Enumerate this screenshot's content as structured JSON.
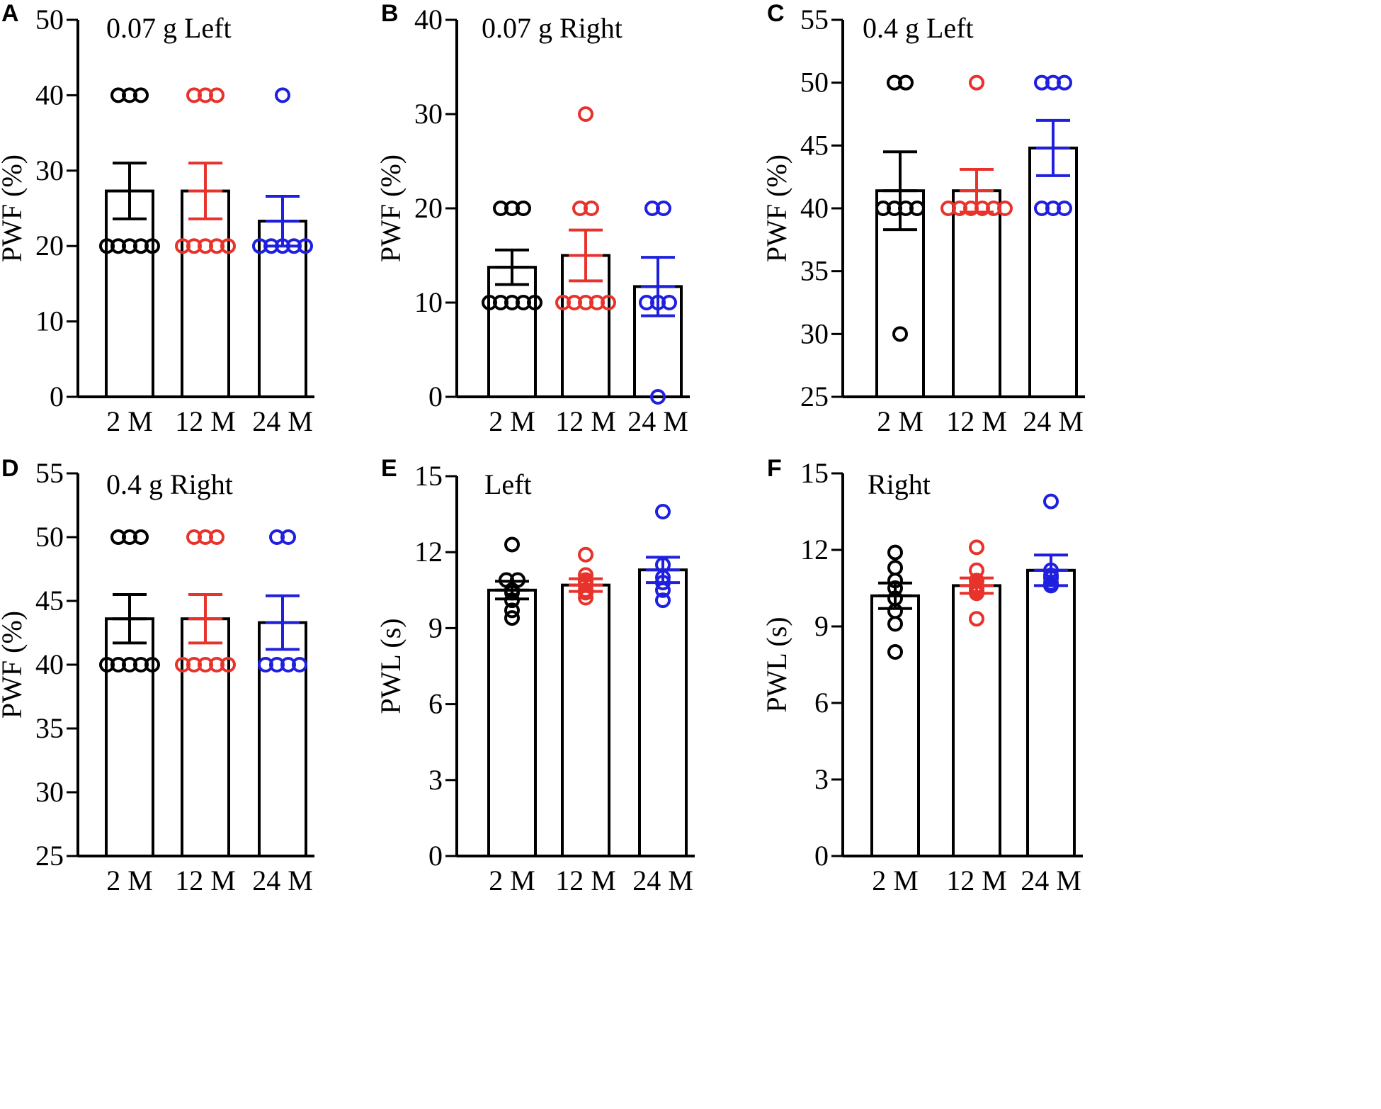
{
  "groups": [
    "2 M",
    "12 M",
    "24 M"
  ],
  "colors": {
    "2 M": "#000000",
    "12 M": "#e8322c",
    "24 M": "#1f1fe0"
  },
  "chart_data": [
    {
      "panel": "A",
      "type": "bar",
      "title": "0.07 g Left",
      "ylabel": "PWF (%)",
      "ylim": [
        0,
        50
      ],
      "yticks": [
        0,
        10,
        20,
        30,
        40,
        50
      ],
      "categories": [
        "2 M",
        "12 M",
        "24 M"
      ],
      "series": [
        {
          "name": "2 M",
          "mean": 27.3,
          "sem": 3.7,
          "points": [
            20,
            20,
            20,
            20,
            20,
            40,
            40,
            40
          ]
        },
        {
          "name": "12 M",
          "mean": 27.3,
          "sem": 3.7,
          "points": [
            20,
            20,
            20,
            20,
            20,
            40,
            40,
            40
          ]
        },
        {
          "name": "24 M",
          "mean": 23.3,
          "sem": 3.3,
          "points": [
            20,
            20,
            20,
            20,
            20,
            40
          ]
        }
      ]
    },
    {
      "panel": "B",
      "type": "bar",
      "title": "0.07 g Right",
      "ylabel": "PWF (%)",
      "ylim": [
        0,
        40
      ],
      "yticks": [
        0,
        10,
        20,
        30,
        40
      ],
      "categories": [
        "2 M",
        "12 M",
        "24 M"
      ],
      "series": [
        {
          "name": "2 M",
          "mean": 13.75,
          "sem": 1.83,
          "points": [
            10,
            10,
            10,
            10,
            10,
            20,
            20,
            20
          ]
        },
        {
          "name": "12 M",
          "mean": 15.0,
          "sem": 2.7,
          "points": [
            10,
            10,
            10,
            10,
            10,
            20,
            20,
            30
          ]
        },
        {
          "name": "24 M",
          "mean": 11.7,
          "sem": 3.1,
          "points": [
            0,
            10,
            10,
            10,
            20,
            20
          ]
        }
      ]
    },
    {
      "panel": "C",
      "type": "bar",
      "title": "0.4 g Left",
      "ylabel": "PWF (%)",
      "ylim": [
        25,
        55
      ],
      "yticks": [
        25,
        30,
        35,
        40,
        45,
        50,
        55
      ],
      "categories": [
        "2 M",
        "12 M",
        "24 M"
      ],
      "series": [
        {
          "name": "2 M",
          "mean": 41.4,
          "sem": 3.1,
          "points": [
            30,
            40,
            40,
            40,
            40,
            50,
            50
          ]
        },
        {
          "name": "12 M",
          "mean": 41.4,
          "sem": 1.7,
          "points": [
            40,
            40,
            40,
            40,
            40,
            40,
            50
          ]
        },
        {
          "name": "24 M",
          "mean": 44.8,
          "sem": 2.2,
          "points": [
            40,
            40,
            40,
            50,
            50,
            50
          ]
        }
      ]
    },
    {
      "panel": "D",
      "type": "bar",
      "title": "0.4 g Right",
      "ylabel": "PWF (%)",
      "ylim": [
        25,
        55
      ],
      "yticks": [
        25,
        30,
        35,
        40,
        45,
        50,
        55
      ],
      "categories": [
        "2 M",
        "12 M",
        "24 M"
      ],
      "series": [
        {
          "name": "2 M",
          "mean": 43.6,
          "sem": 1.9,
          "points": [
            40,
            40,
            40,
            40,
            40,
            50,
            50,
            50
          ]
        },
        {
          "name": "12 M",
          "mean": 43.6,
          "sem": 1.9,
          "points": [
            40,
            40,
            40,
            40,
            40,
            50,
            50,
            50
          ]
        },
        {
          "name": "24 M",
          "mean": 43.3,
          "sem": 2.1,
          "points": [
            40,
            40,
            40,
            40,
            50,
            50
          ]
        }
      ]
    },
    {
      "panel": "E",
      "type": "bar",
      "title": "Left",
      "ylabel": "PWL (s)",
      "ylim": [
        0,
        15
      ],
      "yticks": [
        0,
        3,
        6,
        9,
        12,
        15
      ],
      "categories": [
        "2 M",
        "12 M",
        "24 M"
      ],
      "series": [
        {
          "name": "2 M",
          "mean": 10.5,
          "sem": 0.35,
          "points": [
            12.3,
            10.9,
            10.9,
            10.5,
            10.4,
            10.1,
            9.7,
            9.4
          ]
        },
        {
          "name": "12 M",
          "mean": 10.7,
          "sem": 0.25,
          "points": [
            11.9,
            11.1,
            10.9,
            10.8,
            10.7,
            10.5,
            10.4,
            10.2
          ]
        },
        {
          "name": "24 M",
          "mean": 11.3,
          "sem": 0.5,
          "points": [
            13.6,
            11.5,
            11.0,
            10.8,
            10.5,
            10.1
          ]
        }
      ]
    },
    {
      "panel": "F",
      "type": "bar",
      "title": "Right",
      "ylabel": "PWL (s)",
      "ylim": [
        0,
        15
      ],
      "yticks": [
        0,
        3,
        6,
        9,
        12,
        15
      ],
      "categories": [
        "2 M",
        "12 M",
        "24 M"
      ],
      "series": [
        {
          "name": "2 M",
          "mean": 10.2,
          "sem": 0.5,
          "points": [
            11.9,
            11.3,
            10.8,
            10.5,
            10.1,
            9.6,
            9.1,
            8.0
          ]
        },
        {
          "name": "12 M",
          "mean": 10.6,
          "sem": 0.3,
          "points": [
            12.1,
            11.2,
            10.8,
            10.6,
            10.5,
            10.4,
            10.3,
            9.3
          ]
        },
        {
          "name": "24 M",
          "mean": 11.2,
          "sem": 0.6,
          "points": [
            13.9,
            11.2,
            11.0,
            10.9,
            10.7,
            10.6
          ]
        }
      ]
    }
  ]
}
